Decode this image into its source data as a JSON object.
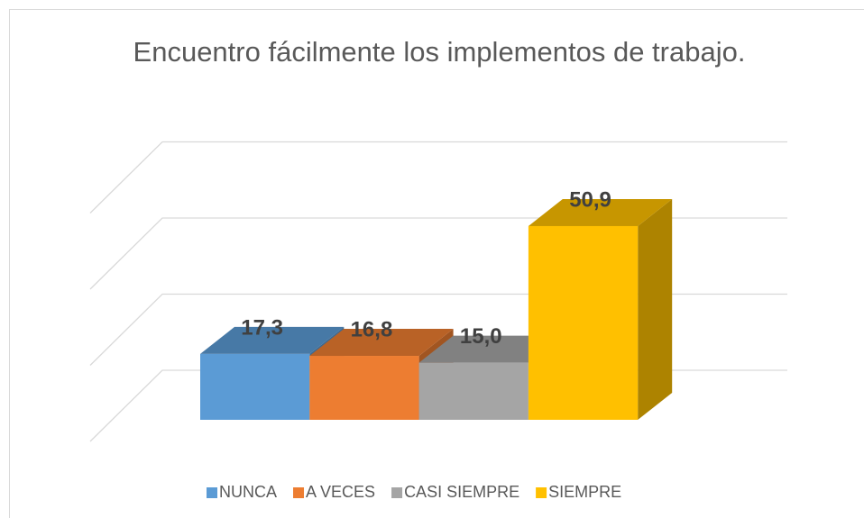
{
  "chart_data": {
    "type": "bar3d",
    "title": "Encuentro fácilmente los implementos de trabajo.",
    "series": [
      {
        "name": "NUNCA",
        "color": "#5b9bd5",
        "values": [
          17.3
        ],
        "value_labels": [
          "17,3"
        ]
      },
      {
        "name": "A VECES",
        "color": "#ed7d31",
        "values": [
          16.8
        ],
        "value_labels": [
          "16,8"
        ]
      },
      {
        "name": "CASI SIEMPRE",
        "color": "#a5a5a5",
        "values": [
          15.0
        ],
        "value_labels": [
          "15,0"
        ]
      },
      {
        "name": "SIEMPRE",
        "color": "#ffc000",
        "values": [
          50.9
        ],
        "value_labels": [
          "50,9"
        ]
      }
    ],
    "ylim": [
      0,
      60
    ],
    "yticks": [
      0,
      20,
      40,
      60
    ],
    "grid": true,
    "legend": "bottom"
  }
}
